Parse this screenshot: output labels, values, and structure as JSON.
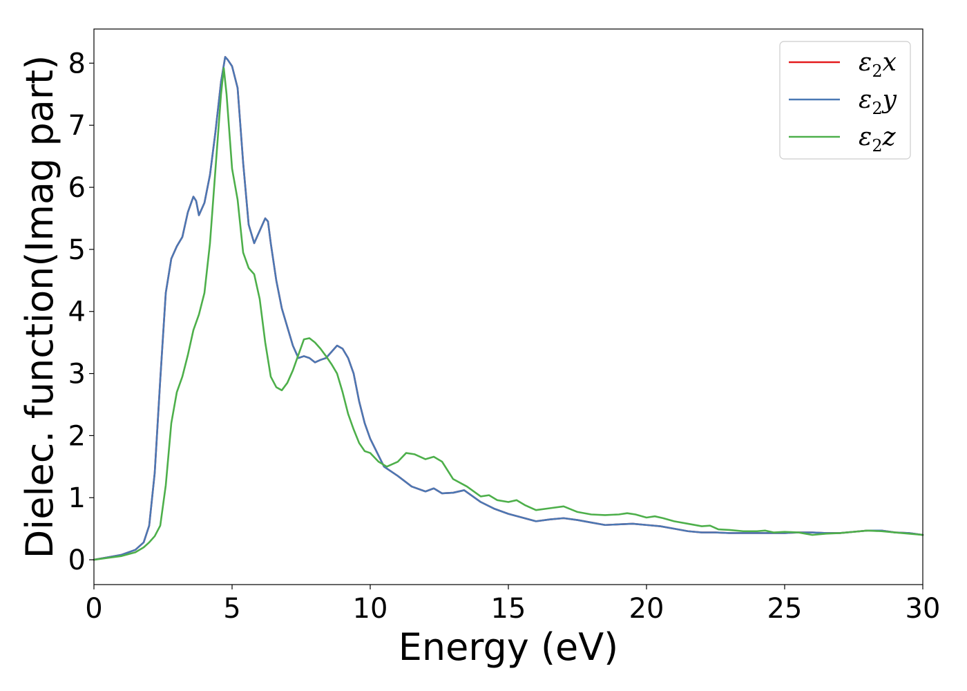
{
  "chart_data": {
    "type": "line",
    "xlabel": "Energy (eV)",
    "ylabel": "Dielec. function(Imag part)",
    "xlim": [
      0,
      30
    ],
    "ylim": [
      -0.4,
      8.55
    ],
    "xticks": [
      0,
      5,
      10,
      15,
      20,
      25,
      30
    ],
    "yticks": [
      0,
      1,
      2,
      3,
      4,
      5,
      6,
      7,
      8
    ],
    "grid": false,
    "legend_position": "top-right",
    "series": [
      {
        "name": "ε2x",
        "legend_base": "ε",
        "legend_sub": "2",
        "legend_suffix": "x",
        "color": "#e41a1c",
        "x": [
          0,
          0.5,
          1.0,
          1.5,
          1.8,
          2.0,
          2.2,
          2.4,
          2.6,
          2.8,
          3.0,
          3.2,
          3.4,
          3.6,
          3.7,
          3.8,
          4.0,
          4.2,
          4.4,
          4.6,
          4.75,
          4.85,
          5.0,
          5.2,
          5.4,
          5.6,
          5.8,
          6.0,
          6.2,
          6.3,
          6.4,
          6.6,
          6.8,
          7.0,
          7.2,
          7.4,
          7.6,
          7.8,
          8.0,
          8.2,
          8.4,
          8.6,
          8.8,
          9.0,
          9.2,
          9.4,
          9.6,
          9.8,
          10.0,
          10.5,
          11.0,
          11.5,
          12.0,
          12.3,
          12.6,
          13.0,
          13.4,
          14.0,
          14.5,
          15.0,
          15.5,
          16.0,
          16.5,
          17.0,
          17.5,
          18.0,
          18.5,
          19.0,
          19.5,
          20.0,
          20.5,
          21.0,
          21.5,
          22.0,
          22.5,
          23.0,
          23.5,
          24.0,
          24.5,
          25.0,
          25.5,
          26.0,
          26.5,
          27.0,
          27.5,
          28.0,
          28.5,
          29.0,
          29.5,
          30.0
        ],
        "values": [
          0.0,
          0.04,
          0.08,
          0.16,
          0.28,
          0.55,
          1.4,
          2.9,
          4.3,
          4.85,
          5.05,
          5.2,
          5.6,
          5.85,
          5.78,
          5.55,
          5.75,
          6.2,
          6.9,
          7.7,
          8.1,
          8.05,
          7.95,
          7.6,
          6.4,
          5.4,
          5.1,
          5.3,
          5.5,
          5.45,
          5.1,
          4.5,
          4.05,
          3.75,
          3.45,
          3.25,
          3.28,
          3.25,
          3.18,
          3.22,
          3.25,
          3.35,
          3.45,
          3.4,
          3.25,
          3.0,
          2.55,
          2.2,
          1.95,
          1.5,
          1.35,
          1.18,
          1.1,
          1.15,
          1.07,
          1.08,
          1.12,
          0.93,
          0.82,
          0.74,
          0.68,
          0.62,
          0.65,
          0.67,
          0.64,
          0.6,
          0.56,
          0.57,
          0.58,
          0.56,
          0.54,
          0.5,
          0.46,
          0.44,
          0.44,
          0.43,
          0.43,
          0.43,
          0.43,
          0.43,
          0.44,
          0.44,
          0.43,
          0.43,
          0.45,
          0.47,
          0.47,
          0.44,
          0.43,
          0.4
        ]
      },
      {
        "name": "ε2y",
        "legend_base": "ε",
        "legend_sub": "2",
        "legend_suffix": "y",
        "color": "#4a78b4",
        "x": [
          0,
          0.5,
          1.0,
          1.5,
          1.8,
          2.0,
          2.2,
          2.4,
          2.6,
          2.8,
          3.0,
          3.2,
          3.4,
          3.6,
          3.7,
          3.8,
          4.0,
          4.2,
          4.4,
          4.6,
          4.75,
          4.85,
          5.0,
          5.2,
          5.4,
          5.6,
          5.8,
          6.0,
          6.2,
          6.3,
          6.4,
          6.6,
          6.8,
          7.0,
          7.2,
          7.4,
          7.6,
          7.8,
          8.0,
          8.2,
          8.4,
          8.6,
          8.8,
          9.0,
          9.2,
          9.4,
          9.6,
          9.8,
          10.0,
          10.5,
          11.0,
          11.5,
          12.0,
          12.3,
          12.6,
          13.0,
          13.4,
          14.0,
          14.5,
          15.0,
          15.5,
          16.0,
          16.5,
          17.0,
          17.5,
          18.0,
          18.5,
          19.0,
          19.5,
          20.0,
          20.5,
          21.0,
          21.5,
          22.0,
          22.5,
          23.0,
          23.5,
          24.0,
          24.5,
          25.0,
          25.5,
          26.0,
          26.5,
          27.0,
          27.5,
          28.0,
          28.5,
          29.0,
          29.5,
          30.0
        ],
        "values": [
          0.0,
          0.04,
          0.08,
          0.16,
          0.28,
          0.55,
          1.4,
          2.9,
          4.3,
          4.85,
          5.05,
          5.2,
          5.6,
          5.85,
          5.78,
          5.55,
          5.75,
          6.2,
          6.9,
          7.7,
          8.1,
          8.05,
          7.95,
          7.6,
          6.4,
          5.4,
          5.1,
          5.3,
          5.5,
          5.45,
          5.1,
          4.5,
          4.05,
          3.75,
          3.45,
          3.25,
          3.28,
          3.25,
          3.18,
          3.22,
          3.25,
          3.35,
          3.45,
          3.4,
          3.25,
          3.0,
          2.55,
          2.2,
          1.95,
          1.5,
          1.35,
          1.18,
          1.1,
          1.15,
          1.07,
          1.08,
          1.12,
          0.93,
          0.82,
          0.74,
          0.68,
          0.62,
          0.65,
          0.67,
          0.64,
          0.6,
          0.56,
          0.57,
          0.58,
          0.56,
          0.54,
          0.5,
          0.46,
          0.44,
          0.44,
          0.43,
          0.43,
          0.43,
          0.43,
          0.43,
          0.44,
          0.44,
          0.43,
          0.43,
          0.45,
          0.47,
          0.47,
          0.44,
          0.43,
          0.4
        ]
      },
      {
        "name": "ε2z",
        "legend_base": "ε",
        "legend_sub": "2",
        "legend_suffix": "z",
        "color": "#4daf4a",
        "x": [
          0,
          0.5,
          1.0,
          1.5,
          1.8,
          2.0,
          2.2,
          2.4,
          2.6,
          2.8,
          3.0,
          3.2,
          3.4,
          3.6,
          3.8,
          4.0,
          4.2,
          4.4,
          4.6,
          4.7,
          4.8,
          5.0,
          5.2,
          5.4,
          5.6,
          5.8,
          6.0,
          6.2,
          6.4,
          6.6,
          6.8,
          7.0,
          7.2,
          7.4,
          7.6,
          7.8,
          8.0,
          8.2,
          8.4,
          8.6,
          8.8,
          9.0,
          9.2,
          9.4,
          9.6,
          9.8,
          10.0,
          10.3,
          10.6,
          11.0,
          11.3,
          11.6,
          12.0,
          12.3,
          12.6,
          13.0,
          13.5,
          14.0,
          14.3,
          14.6,
          15.0,
          15.3,
          15.6,
          16.0,
          16.5,
          17.0,
          17.5,
          18.0,
          18.5,
          19.0,
          19.3,
          19.6,
          20.0,
          20.3,
          20.6,
          21.0,
          21.5,
          22.0,
          22.3,
          22.6,
          23.0,
          23.5,
          24.0,
          24.3,
          24.6,
          25.0,
          25.5,
          26.0,
          26.5,
          27.0,
          27.5,
          28.0,
          28.5,
          29.0,
          29.5,
          30.0
        ],
        "values": [
          0.0,
          0.03,
          0.06,
          0.12,
          0.2,
          0.28,
          0.38,
          0.55,
          1.2,
          2.2,
          2.7,
          2.95,
          3.3,
          3.7,
          3.95,
          4.3,
          5.1,
          6.3,
          7.5,
          7.92,
          7.5,
          6.3,
          5.8,
          4.95,
          4.7,
          4.6,
          4.2,
          3.5,
          2.95,
          2.78,
          2.73,
          2.85,
          3.05,
          3.3,
          3.55,
          3.57,
          3.5,
          3.4,
          3.28,
          3.15,
          3.0,
          2.7,
          2.35,
          2.1,
          1.88,
          1.75,
          1.72,
          1.58,
          1.5,
          1.58,
          1.72,
          1.7,
          1.62,
          1.66,
          1.58,
          1.3,
          1.18,
          1.02,
          1.04,
          0.96,
          0.93,
          0.96,
          0.88,
          0.8,
          0.83,
          0.86,
          0.77,
          0.73,
          0.72,
          0.73,
          0.75,
          0.73,
          0.68,
          0.7,
          0.67,
          0.62,
          0.58,
          0.54,
          0.55,
          0.49,
          0.48,
          0.46,
          0.46,
          0.47,
          0.44,
          0.45,
          0.44,
          0.4,
          0.42,
          0.43,
          0.45,
          0.47,
          0.46,
          0.44,
          0.42,
          0.4
        ]
      }
    ]
  }
}
